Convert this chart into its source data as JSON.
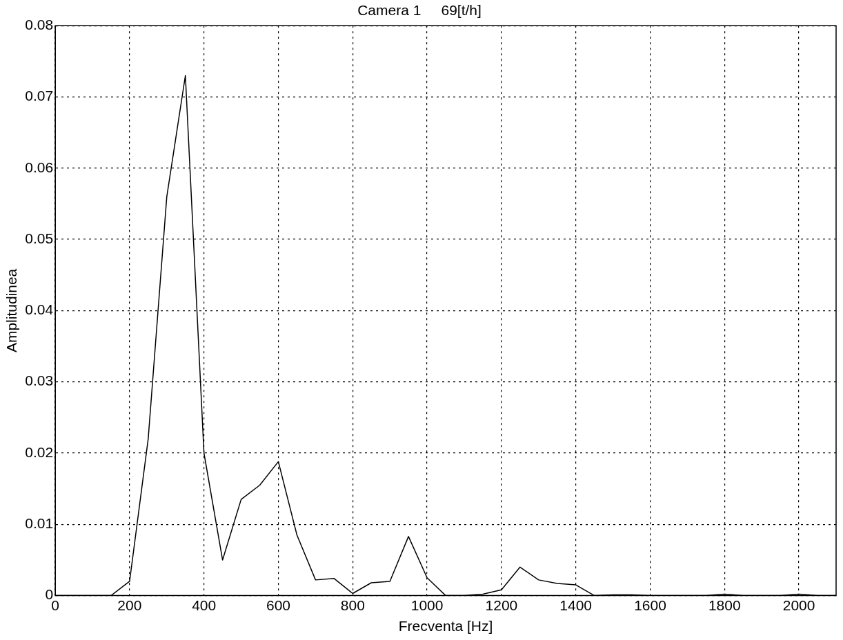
{
  "chart_data": {
    "type": "line",
    "title": "Camera 1     69[t/h]",
    "xlabel": "Frecventa [Hz]",
    "ylabel": "Amplitudinea",
    "x": [
      0,
      50,
      100,
      150,
      200,
      250,
      300,
      350,
      400,
      450,
      500,
      550,
      600,
      650,
      700,
      750,
      800,
      850,
      900,
      950,
      1000,
      1050,
      1100,
      1150,
      1200,
      1250,
      1300,
      1350,
      1400,
      1450,
      1500,
      1550,
      1600,
      1650,
      1700,
      1750,
      1800,
      1850,
      1900,
      1950,
      2000,
      2050,
      2100
    ],
    "series": [
      {
        "color": "#000000",
        "values": [
          0,
          0,
          0,
          0,
          0.002,
          0.022,
          0.056,
          0.073,
          0.02,
          0.005,
          0.0135,
          0.0155,
          0.0188,
          0.0085,
          0.0022,
          0.0024,
          0.0003,
          0.0018,
          0.002,
          0.0083,
          0.0025,
          0,
          0,
          0.0002,
          0.0008,
          0.004,
          0.0022,
          0.0017,
          0.0015,
          0,
          0.0001,
          0.0001,
          0,
          0,
          0,
          0,
          0.0002,
          0,
          0,
          0,
          0.0002,
          0,
          0
        ]
      }
    ],
    "xlim": [
      0,
      2100
    ],
    "xticks": [
      0,
      200,
      400,
      600,
      800,
      1000,
      1200,
      1400,
      1600,
      1800,
      2000
    ],
    "ylim": [
      0,
      0.08
    ],
    "yticks": [
      0,
      0.01,
      0.02,
      0.03,
      0.04,
      0.05,
      0.06,
      0.07,
      0.08
    ],
    "grid": true,
    "legend": false,
    "marker": "none",
    "line_style": "solid"
  }
}
